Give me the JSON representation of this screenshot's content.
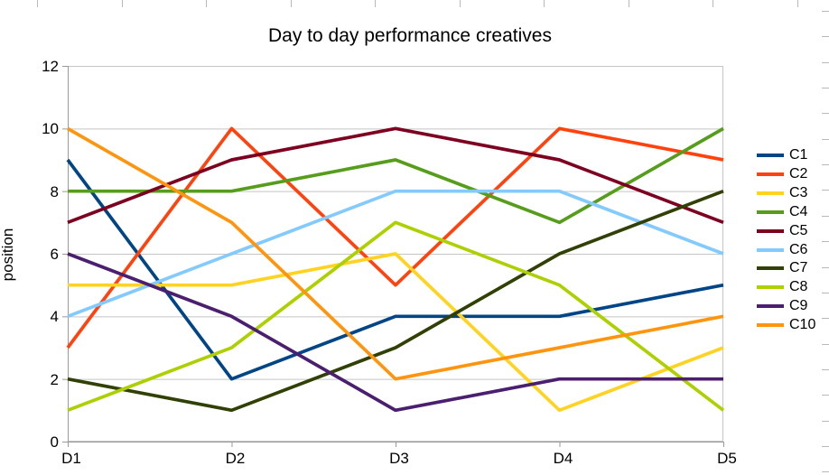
{
  "chart_data": {
    "type": "line",
    "title": "Day to day performance creatives",
    "xlabel": "",
    "ylabel": "position",
    "categories": [
      "D1",
      "D2",
      "D3",
      "D4",
      "D5"
    ],
    "y_ticks": [
      0,
      2,
      4,
      6,
      8,
      10,
      12
    ],
    "ylim": [
      0,
      12
    ],
    "grid": "horizontal-on",
    "legend_position": "right",
    "series": [
      {
        "name": "C1",
        "color": "#004586",
        "values": [
          9,
          2,
          4,
          4,
          5
        ]
      },
      {
        "name": "C2",
        "color": "#FF420E",
        "values": [
          3,
          10,
          5,
          10,
          9
        ]
      },
      {
        "name": "C3",
        "color": "#FFD320",
        "values": [
          5,
          5,
          6,
          1,
          3
        ]
      },
      {
        "name": "C4",
        "color": "#579D1C",
        "values": [
          8,
          8,
          9,
          7,
          10
        ]
      },
      {
        "name": "C5",
        "color": "#7E0021",
        "values": [
          7,
          9,
          10,
          9,
          7
        ]
      },
      {
        "name": "C6",
        "color": "#83CAFF",
        "values": [
          4,
          6,
          8,
          8,
          6
        ]
      },
      {
        "name": "C7",
        "color": "#314004",
        "values": [
          2,
          1,
          3,
          6,
          8
        ]
      },
      {
        "name": "C8",
        "color": "#AECF00",
        "values": [
          1,
          3,
          7,
          5,
          1
        ]
      },
      {
        "name": "C9",
        "color": "#4B1F6F",
        "values": [
          6,
          4,
          1,
          2,
          2
        ]
      },
      {
        "name": "C10",
        "color": "#FF950E",
        "values": [
          10,
          7,
          2,
          3,
          4
        ]
      }
    ],
    "colors": {
      "gridline": "#c5c5c5",
      "axis": "#9a9a9a",
      "plot_border": "#c5c5c5",
      "background": "#ffffff"
    }
  }
}
